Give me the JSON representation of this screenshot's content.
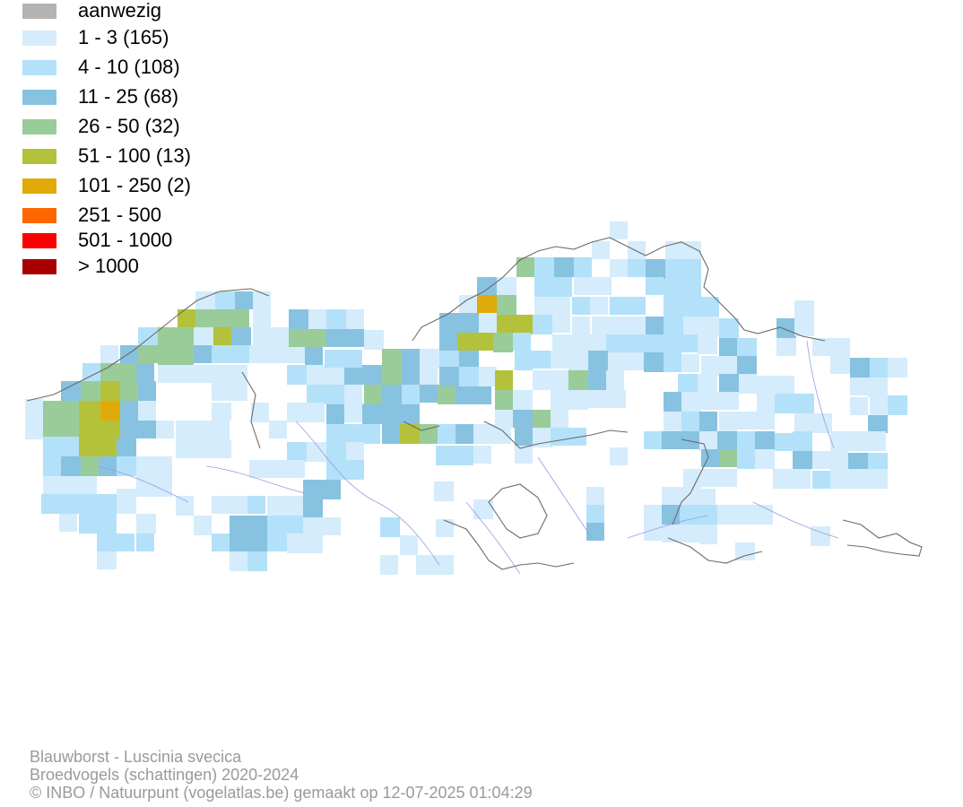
{
  "legend": {
    "items": [
      {
        "label": "aanwezig",
        "color": "#b3b3b3"
      },
      {
        "label": "1 - 3 (165)",
        "color": "#d4ecfb"
      },
      {
        "label": "4 - 10 (108)",
        "color": "#b3e1f9"
      },
      {
        "label": "11 - 25 (68)",
        "color": "#88c2e1"
      },
      {
        "label": "26 - 50 (32)",
        "color": "#99cc99"
      },
      {
        "label": "51 - 100 (13)",
        "color": "#b3c23a"
      },
      {
        "label": "101 - 250 (2)",
        "color": "#e0ab08"
      },
      {
        "label": "251 - 500",
        "color": "#ff6600"
      },
      {
        "label": "501 - 1000",
        "color": "#ff0000"
      },
      {
        "label": "> 1000",
        "color": "#a80000"
      }
    ]
  },
  "footer": {
    "species": "Blauwborst - Luscinia svecica",
    "dataset": "Broedvogels (schattingen) 2020-2024",
    "credit": "© INBO / Natuurpunt (vogelatlas.be) gemaakt op 12-07-2025 01:04:29"
  },
  "colors": {
    "boundary": "#6f6a66",
    "river": "#9a9ae6"
  }
}
